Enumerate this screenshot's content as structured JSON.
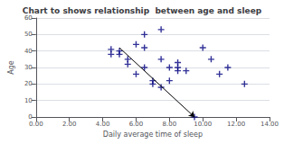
{
  "chart_data": {
    "type": "scatter",
    "title": "Chart to shows relationship  between age and sleep",
    "xlabel": "Daily average time of sleep",
    "ylabel": "Age",
    "x": [
      5.0,
      5.5,
      5.5,
      5.0,
      6.0,
      6.0,
      6.5,
      6.5,
      7.0,
      7.0,
      7.5,
      7.5,
      8.0,
      8.0,
      8.5,
      8.5,
      9.0,
      9.5,
      10.0,
      10.5,
      11.0,
      11.5,
      12.5,
      4.5,
      4.5,
      6.5,
      7.5,
      8.5
    ],
    "values": [
      38,
      35,
      32,
      40,
      44,
      26,
      42,
      30,
      22,
      20,
      18,
      35,
      22,
      30,
      30,
      28,
      28,
      0,
      42,
      35,
      26,
      30,
      20,
      38,
      41,
      50,
      53,
      33
    ],
    "color": "#000080",
    "marker": "plus",
    "arrow": {
      "from": [
        5.0,
        42
      ],
      "to": [
        9.5,
        0
      ]
    },
    "xlim": [
      0,
      14
    ],
    "ylim": [
      0,
      60
    ],
    "xticks": [
      {
        "value": 0,
        "label": "0.00"
      },
      {
        "value": 2,
        "label": "2.00"
      },
      {
        "value": 4,
        "label": "4.00"
      },
      {
        "value": 6,
        "label": "6.00"
      },
      {
        "value": 8,
        "label": "8.00"
      },
      {
        "value": 10,
        "label": "10.00"
      },
      {
        "value": 12,
        "label": "12.00"
      },
      {
        "value": 14,
        "label": "14.00"
      }
    ],
    "yticks": [
      0,
      10,
      20,
      30,
      40,
      50,
      60
    ],
    "grid": "y"
  }
}
